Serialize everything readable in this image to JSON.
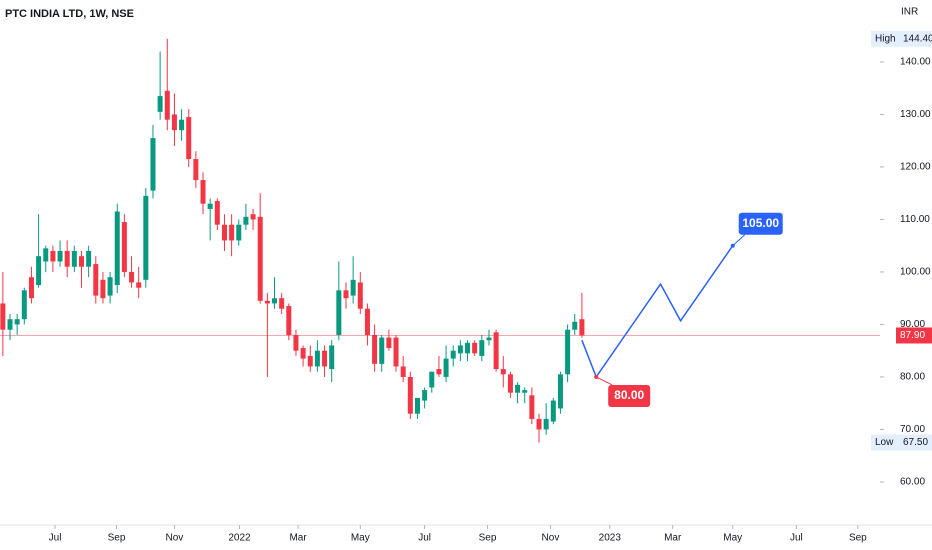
{
  "chart_data": {
    "type": "candlestick",
    "title": "PTC INDIA LTD, 1W, NSE",
    "currency": "INR",
    "up_color": "#089981",
    "down_color": "#f23645",
    "x": [
      0,
      1,
      2,
      3,
      4,
      5,
      6,
      7,
      8,
      9,
      10,
      11,
      12,
      13,
      14,
      15,
      16,
      17,
      18,
      19,
      20,
      21,
      22,
      23,
      24,
      25,
      26,
      27,
      28,
      29,
      30,
      31,
      32,
      33,
      34,
      35,
      36,
      37,
      38,
      39,
      40,
      41,
      42,
      43,
      44,
      45,
      46,
      47,
      48,
      49,
      50,
      51,
      52,
      53,
      54,
      55,
      56,
      57,
      58,
      59,
      60,
      61,
      62,
      63,
      64,
      65,
      66,
      67,
      68,
      69,
      70,
      71,
      72,
      73,
      74,
      75,
      76,
      77,
      78,
      79,
      80,
      81
    ],
    "open": [
      94,
      89,
      90,
      91,
      99,
      97.5,
      102,
      104,
      102,
      104,
      101,
      103,
      101,
      101.5,
      98.5,
      95.5,
      97.5,
      109.5,
      100,
      98,
      98.5,
      115.5,
      130.5,
      134.5,
      130,
      127,
      129.5,
      121.5,
      117.5,
      112,
      113.5,
      109,
      109,
      106,
      109,
      111,
      110.5,
      94.5,
      94,
      95,
      93.5,
      88,
      85.5,
      84,
      82,
      85,
      81.5,
      88,
      96.5,
      95.5,
      98,
      93,
      88,
      82.5,
      87.5,
      87.5,
      82,
      80,
      73,
      75.5,
      78,
      81.5,
      80,
      83.5,
      84.5,
      84.5,
      86.5,
      84,
      87,
      88.5,
      81.5,
      80.5,
      77,
      77,
      76.5,
      72,
      70,
      71.5,
      74,
      80.5,
      89,
      91
    ],
    "high": [
      100,
      92,
      92,
      97,
      101,
      111,
      105,
      105,
      106,
      106,
      105,
      104,
      105,
      103,
      100,
      100,
      113,
      111,
      103,
      101,
      116,
      128,
      142,
      144.4,
      134,
      131,
      131,
      123,
      119,
      114,
      114,
      111,
      111,
      110,
      113,
      112,
      115,
      96,
      99,
      96,
      94,
      89,
      86,
      86,
      87,
      86,
      87,
      102,
      98,
      103,
      100,
      94,
      90,
      88,
      89,
      88,
      84,
      81,
      76,
      78,
      81,
      84,
      86,
      86,
      87,
      87,
      87,
      88,
      89,
      89,
      84,
      81,
      79,
      78,
      78,
      73,
      75,
      76,
      81,
      90,
      92,
      96
    ],
    "low": [
      84,
      87,
      88,
      90,
      94,
      97,
      100,
      100,
      101,
      99,
      100,
      97,
      99,
      94,
      94,
      94,
      96,
      99,
      97,
      95,
      97,
      114,
      129,
      127,
      124,
      125,
      120,
      116,
      111,
      106,
      108,
      104,
      103,
      105,
      108,
      108,
      94,
      80,
      93,
      92,
      87,
      84,
      82,
      81,
      81,
      80,
      79,
      87,
      93,
      94,
      92,
      86,
      81,
      81,
      85,
      81,
      79,
      72,
      72,
      74,
      77,
      80,
      79,
      82,
      83,
      83,
      84,
      83,
      86,
      81,
      78,
      76,
      75,
      75,
      71,
      67.5,
      69,
      71,
      73,
      79,
      88,
      87.5
    ],
    "close": [
      89,
      91,
      91,
      96.5,
      95,
      103,
      104.5,
      102,
      104,
      101,
      104,
      101,
      104,
      95.5,
      95,
      99,
      111.5,
      100,
      98,
      97,
      114.5,
      125.5,
      133.5,
      129,
      127,
      129,
      121.5,
      117.5,
      113,
      113,
      109,
      106,
      106,
      109,
      110.5,
      110,
      94.5,
      94,
      95,
      93,
      88,
      85,
      83.5,
      82,
      85,
      82,
      86,
      96.5,
      95,
      98.5,
      93,
      88,
      82.5,
      87.5,
      85.5,
      82,
      80,
      73,
      76,
      77.5,
      81,
      80.5,
      83.5,
      85,
      86,
      86.5,
      84.5,
      87,
      87.5,
      81.5,
      80.5,
      77,
      78.5,
      77.5,
      72,
      70,
      72,
      75.5,
      80.5,
      89,
      90.5,
      87.9
    ],
    "xlim": [
      -0.4,
      122.7
    ],
    "xticks": [
      {
        "value": 7.3,
        "label": "Jul"
      },
      {
        "value": 15.9,
        "label": "Sep"
      },
      {
        "value": 24,
        "label": "Nov"
      },
      {
        "value": 33.1,
        "label": "2022"
      },
      {
        "value": 41.3,
        "label": "Mar"
      },
      {
        "value": 50,
        "label": "May"
      },
      {
        "value": 59,
        "label": "Jul"
      },
      {
        "value": 67.8,
        "label": "Sep"
      },
      {
        "value": 76.6,
        "label": "Nov"
      },
      {
        "value": 84.9,
        "label": "2023"
      },
      {
        "value": 93.7,
        "label": "Mar"
      },
      {
        "value": 102.1,
        "label": "May"
      },
      {
        "value": 111,
        "label": "Jul"
      },
      {
        "value": 119.6,
        "label": "Sep"
      }
    ],
    "ylim": [
      51.8,
      151.8
    ],
    "yticks": [
      {
        "value": 60,
        "label": "60.00"
      },
      {
        "value": 70,
        "label": "70.00"
      },
      {
        "value": 80,
        "label": "80.00"
      },
      {
        "value": 90,
        "label": "90.00"
      },
      {
        "value": 100,
        "label": "100.00"
      },
      {
        "value": 110,
        "label": "110.00"
      },
      {
        "value": 120,
        "label": "120.00"
      },
      {
        "value": 130,
        "label": "130.00"
      },
      {
        "value": 140,
        "label": "140.00"
      }
    ],
    "high_marker": {
      "name": "High",
      "value": 144.4,
      "label": "144.40"
    },
    "low_marker": {
      "name": "Low",
      "value": 67.5,
      "label": "67.50"
    },
    "last_price": {
      "value": 87.9,
      "label": "87.90"
    },
    "projection": {
      "color": "#2962ff",
      "x": [
        81,
        83,
        92,
        94.8,
        102.1
      ],
      "values": [
        87,
        80,
        97.7,
        90.7,
        105
      ]
    },
    "annotations": [
      {
        "x": 83,
        "value": 80,
        "label": "80.00",
        "color": "#f23645"
      },
      {
        "x": 102.1,
        "value": 105,
        "label": "105.00",
        "color": "#2962ff"
      }
    ]
  }
}
